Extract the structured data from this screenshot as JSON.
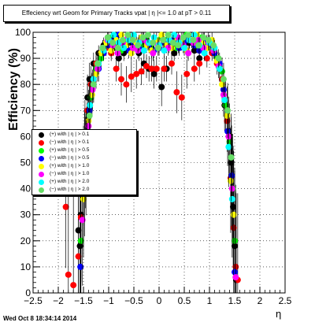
{
  "title": "Effeciency wrt Geom for Primary Tracks vpat | η |<= 1.0 at pT > 0.11",
  "footer": "Wed Oct  8 18:34:14 2014",
  "chart_data": {
    "type": "scatter",
    "xlabel": "η",
    "ylabel": "Efficiency (%)",
    "xlim": [
      -2.5,
      2.5
    ],
    "ylim": [
      0,
      100
    ],
    "x_ticks": [
      "−2.5",
      "−2",
      "−1.5",
      "−1",
      "−0.5",
      "0",
      "0.5",
      "1",
      "1.5",
      "2",
      "2.5"
    ],
    "y_ticks": [
      "0",
      "10",
      "20",
      "30",
      "40",
      "50",
      "60",
      "70",
      "80",
      "90",
      "100"
    ],
    "grid": true,
    "legend_position": "left-middle",
    "series": [
      {
        "name": "(+) with | η | > 0.1",
        "color": "#000000",
        "points": [
          [
            -1.6,
            24
          ],
          [
            -1.57,
            18
          ],
          [
            -1.55,
            30
          ],
          [
            -1.5,
            45
          ],
          [
            -1.47,
            60
          ],
          [
            -1.42,
            75
          ],
          [
            -1.38,
            82
          ],
          [
            -1.3,
            88
          ],
          [
            -1.2,
            92
          ],
          [
            -1.1,
            95
          ],
          [
            -1.0,
            96
          ],
          [
            -0.9,
            94
          ],
          [
            -0.8,
            90
          ],
          [
            -0.7,
            92
          ],
          [
            -0.6,
            96
          ],
          [
            -0.5,
            95
          ],
          [
            -0.4,
            92
          ],
          [
            -0.3,
            88
          ],
          [
            -0.2,
            86
          ],
          [
            -0.1,
            84
          ],
          [
            0.05,
            79
          ],
          [
            0.15,
            86
          ],
          [
            0.3,
            92
          ],
          [
            0.4,
            95
          ],
          [
            0.5,
            97
          ],
          [
            0.6,
            96
          ],
          [
            0.7,
            93
          ],
          [
            0.8,
            90
          ],
          [
            0.9,
            94
          ],
          [
            1.0,
            96
          ],
          [
            1.1,
            92
          ],
          [
            1.2,
            86
          ],
          [
            1.3,
            72
          ],
          [
            1.38,
            62
          ],
          [
            1.43,
            50
          ],
          [
            1.47,
            33
          ],
          [
            1.5,
            18
          ],
          [
            1.53,
            5
          ]
        ]
      },
      {
        "name": "(−) with | η | > 0.1",
        "color": "#ff0000",
        "points": [
          [
            -1.85,
            33
          ],
          [
            -1.8,
            7
          ],
          [
            -1.7,
            3
          ],
          [
            -1.6,
            14
          ],
          [
            -1.55,
            29
          ],
          [
            -1.48,
            55
          ],
          [
            -1.42,
            70
          ],
          [
            -1.35,
            80
          ],
          [
            -1.25,
            88
          ],
          [
            -1.15,
            92
          ],
          [
            -1.05,
            94
          ],
          [
            -0.95,
            92
          ],
          [
            -0.85,
            86
          ],
          [
            -0.75,
            82
          ],
          [
            -0.65,
            80
          ],
          [
            -0.55,
            83
          ],
          [
            -0.45,
            84
          ],
          [
            -0.35,
            85
          ],
          [
            -0.25,
            87
          ],
          [
            -0.15,
            86
          ],
          [
            -0.05,
            86
          ],
          [
            0.1,
            86
          ],
          [
            0.25,
            88
          ],
          [
            0.35,
            77
          ],
          [
            0.45,
            75
          ],
          [
            0.55,
            84
          ],
          [
            0.7,
            86
          ],
          [
            0.8,
            88
          ],
          [
            0.95,
            90
          ],
          [
            1.05,
            92
          ],
          [
            1.15,
            88
          ],
          [
            1.25,
            82
          ],
          [
            1.35,
            66
          ],
          [
            1.42,
            44
          ],
          [
            1.48,
            25
          ],
          [
            1.52,
            10
          ],
          [
            1.56,
            5
          ]
        ]
      },
      {
        "name": "(+) with | η | > 0.5",
        "color": "#00ff00",
        "points": [
          [
            -1.55,
            20
          ],
          [
            -1.48,
            47
          ],
          [
            -1.42,
            62
          ],
          [
            -1.35,
            75
          ],
          [
            -1.25,
            86
          ],
          [
            -1.15,
            90
          ],
          [
            -1.05,
            95
          ],
          [
            -0.95,
            98
          ],
          [
            -0.85,
            96
          ],
          [
            -0.75,
            93
          ],
          [
            -0.65,
            97
          ],
          [
            -0.55,
            98
          ],
          [
            -0.45,
            96
          ],
          [
            -0.35,
            95
          ],
          [
            -0.25,
            97
          ],
          [
            -0.15,
            94
          ],
          [
            -0.05,
            96
          ],
          [
            0.05,
            98
          ],
          [
            0.15,
            97
          ],
          [
            0.25,
            96
          ],
          [
            0.35,
            94
          ],
          [
            0.45,
            97
          ],
          [
            0.55,
            99
          ],
          [
            0.65,
            97
          ],
          [
            0.75,
            95
          ],
          [
            0.85,
            98
          ],
          [
            0.95,
            96
          ],
          [
            1.05,
            94
          ],
          [
            1.15,
            90
          ],
          [
            1.25,
            85
          ],
          [
            1.32,
            72
          ],
          [
            1.4,
            58
          ],
          [
            1.46,
            40
          ],
          [
            1.5,
            20
          ]
        ]
      },
      {
        "name": "(−) with | η | > 0.5",
        "color": "#0000ff",
        "points": [
          [
            -1.56,
            10
          ],
          [
            -1.5,
            39
          ],
          [
            -1.44,
            55
          ],
          [
            -1.38,
            70
          ],
          [
            -1.3,
            80
          ],
          [
            -1.2,
            86
          ],
          [
            -1.1,
            92
          ],
          [
            -1.0,
            95
          ],
          [
            -0.9,
            97
          ],
          [
            -0.8,
            99
          ],
          [
            -0.7,
            95
          ],
          [
            -0.6,
            93
          ],
          [
            -0.5,
            96
          ],
          [
            -0.4,
            94
          ],
          [
            -0.3,
            97
          ],
          [
            -0.2,
            95
          ],
          [
            -0.1,
            93
          ],
          [
            0.0,
            94
          ],
          [
            0.1,
            96
          ],
          [
            0.2,
            95
          ],
          [
            0.3,
            97
          ],
          [
            0.4,
            94
          ],
          [
            0.5,
            96
          ],
          [
            0.6,
            98
          ],
          [
            0.7,
            95
          ],
          [
            0.8,
            93
          ],
          [
            0.9,
            97
          ],
          [
            1.0,
            95
          ],
          [
            1.1,
            92
          ],
          [
            1.2,
            88
          ],
          [
            1.28,
            78
          ],
          [
            1.36,
            62
          ],
          [
            1.44,
            45
          ],
          [
            1.5,
            8
          ]
        ]
      },
      {
        "name": "(+) with | η | > 1.0",
        "color": "#ffff00",
        "points": [
          [
            -1.5,
            36
          ],
          [
            -1.45,
            52
          ],
          [
            -1.4,
            66
          ],
          [
            -1.33,
            76
          ],
          [
            -1.25,
            84
          ],
          [
            -1.15,
            92
          ],
          [
            -1.05,
            96
          ],
          [
            -0.95,
            93
          ],
          [
            -0.85,
            97
          ],
          [
            -0.75,
            99
          ],
          [
            -0.65,
            95
          ],
          [
            -0.55,
            92
          ],
          [
            -0.45,
            96
          ],
          [
            -0.35,
            98
          ],
          [
            -0.25,
            95
          ],
          [
            -0.15,
            93
          ],
          [
            -0.05,
            97
          ],
          [
            0.05,
            99
          ],
          [
            0.15,
            95
          ],
          [
            0.25,
            94
          ],
          [
            0.35,
            98
          ],
          [
            0.45,
            96
          ],
          [
            0.55,
            93
          ],
          [
            0.65,
            97
          ],
          [
            0.75,
            99
          ],
          [
            0.85,
            96
          ],
          [
            0.95,
            94
          ],
          [
            1.05,
            97
          ],
          [
            1.15,
            89
          ],
          [
            1.25,
            80
          ],
          [
            1.35,
            68
          ],
          [
            1.42,
            43
          ],
          [
            1.48,
            30
          ]
        ]
      },
      {
        "name": "(−) with | η | > 1.0",
        "color": "#ff00ff",
        "points": [
          [
            -1.52,
            28
          ],
          [
            -1.46,
            50
          ],
          [
            -1.4,
            64
          ],
          [
            -1.32,
            78
          ],
          [
            -1.22,
            86
          ],
          [
            -1.12,
            94
          ],
          [
            -1.02,
            97
          ],
          [
            -0.92,
            95
          ],
          [
            -0.82,
            92
          ],
          [
            -0.72,
            96
          ],
          [
            -0.62,
            98
          ],
          [
            -0.52,
            94
          ],
          [
            -0.42,
            93
          ],
          [
            -0.32,
            97
          ],
          [
            -0.22,
            96
          ],
          [
            -0.12,
            92
          ],
          [
            -0.02,
            95
          ],
          [
            0.08,
            97
          ],
          [
            0.18,
            94
          ],
          [
            0.28,
            96
          ],
          [
            0.38,
            98
          ],
          [
            0.48,
            95
          ],
          [
            0.58,
            92
          ],
          [
            0.68,
            96
          ],
          [
            0.78,
            97
          ],
          [
            0.88,
            94
          ],
          [
            0.98,
            96
          ],
          [
            1.08,
            93
          ],
          [
            1.18,
            87
          ],
          [
            1.28,
            76
          ],
          [
            1.38,
            60
          ],
          [
            1.45,
            40
          ],
          [
            1.52,
            6
          ]
        ]
      },
      {
        "name": "(+) with | η | > 2.0",
        "color": "#00ffff",
        "points": [
          [
            -1.48,
            42
          ],
          [
            -1.43,
            58
          ],
          [
            -1.37,
            72
          ],
          [
            -1.3,
            82
          ],
          [
            -1.2,
            88
          ],
          [
            -1.1,
            93
          ],
          [
            -1.0,
            97
          ],
          [
            -0.9,
            99
          ],
          [
            -0.8,
            96
          ],
          [
            -0.7,
            94
          ],
          [
            -0.6,
            97
          ],
          [
            -0.5,
            99
          ],
          [
            -0.4,
            96
          ],
          [
            -0.3,
            93
          ],
          [
            -0.2,
            96
          ],
          [
            -0.1,
            98
          ],
          [
            0.0,
            95
          ],
          [
            0.1,
            93
          ],
          [
            0.2,
            97
          ],
          [
            0.3,
            99
          ],
          [
            0.4,
            96
          ],
          [
            0.5,
            94
          ],
          [
            0.6,
            97
          ],
          [
            0.7,
            99
          ],
          [
            0.8,
            95
          ],
          [
            0.9,
            92
          ],
          [
            1.0,
            96
          ],
          [
            1.1,
            94
          ],
          [
            1.2,
            86
          ],
          [
            1.3,
            74
          ],
          [
            1.38,
            56
          ],
          [
            1.45,
            36
          ]
        ]
      },
      {
        "name": "(−) with | η | > 2.0",
        "color": "#66dd66",
        "points": [
          [
            -1.45,
            48
          ],
          [
            -1.38,
            68
          ],
          [
            -1.3,
            80
          ],
          [
            -1.22,
            88
          ],
          [
            -1.12,
            94
          ],
          [
            -1.02,
            98
          ],
          [
            -0.92,
            96
          ],
          [
            -0.82,
            94
          ],
          [
            -0.72,
            97
          ],
          [
            -0.62,
            99
          ],
          [
            -0.52,
            97
          ],
          [
            -0.42,
            95
          ],
          [
            -0.32,
            98
          ],
          [
            -0.22,
            99
          ],
          [
            -0.12,
            96
          ],
          [
            -0.02,
            94
          ],
          [
            0.08,
            97
          ],
          [
            0.18,
            99
          ],
          [
            0.28,
            96
          ],
          [
            0.38,
            95
          ],
          [
            0.48,
            98
          ],
          [
            0.58,
            99
          ],
          [
            0.68,
            97
          ],
          [
            0.78,
            95
          ],
          [
            0.88,
            98
          ],
          [
            0.98,
            97
          ],
          [
            1.08,
            95
          ],
          [
            1.18,
            90
          ],
          [
            1.28,
            82
          ],
          [
            1.36,
            70
          ],
          [
            1.43,
            52
          ]
        ]
      }
    ]
  }
}
